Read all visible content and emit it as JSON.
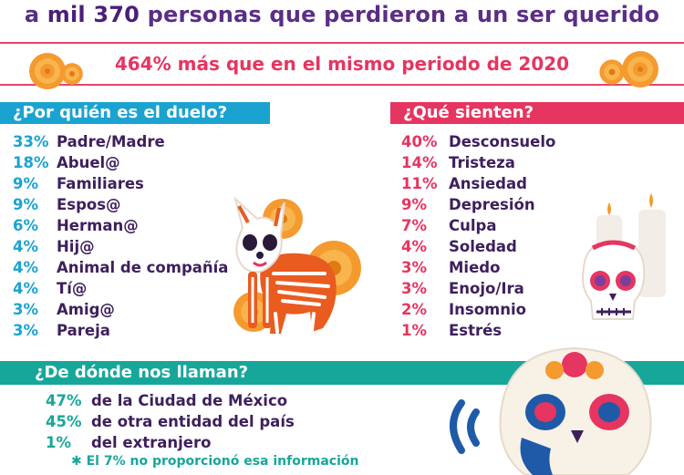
{
  "headline": {
    "pre": "a ",
    "em": "mil 370",
    "post": " personas que perdieron a un ser querido"
  },
  "subhead": "464% más que en el mismo periodo de 2020",
  "duelo": {
    "title": "¿Por quién es el duelo?",
    "items": [
      {
        "pct": "33%",
        "label": "Padre/Madre"
      },
      {
        "pct": "18%",
        "label": "Abuel@"
      },
      {
        "pct": "9%",
        "label": "Familiares"
      },
      {
        "pct": "9%",
        "label": "Espos@"
      },
      {
        "pct": "6%",
        "label": "Herman@"
      },
      {
        "pct": "4%",
        "label": "Hij@"
      },
      {
        "pct": "4%",
        "label": "Animal de compañía"
      },
      {
        "pct": "4%",
        "label": "Tí@"
      },
      {
        "pct": "3%",
        "label": "Amig@"
      },
      {
        "pct": "3%",
        "label": "Pareja"
      }
    ]
  },
  "sienten": {
    "title": "¿Qué sienten?",
    "items": [
      {
        "pct": "40%",
        "label": "Desconsuelo"
      },
      {
        "pct": "14%",
        "label": "Tristeza"
      },
      {
        "pct": "11%",
        "label": "Ansiedad"
      },
      {
        "pct": "9%",
        "label": "Depresión"
      },
      {
        "pct": "7%",
        "label": "Culpa"
      },
      {
        "pct": "4%",
        "label": "Soledad"
      },
      {
        "pct": "3%",
        "label": "Miedo"
      },
      {
        "pct": "3%",
        "label": "Enojo/Ira"
      },
      {
        "pct": "2%",
        "label": "Insomnio"
      },
      {
        "pct": "1%",
        "label": "Estrés"
      }
    ]
  },
  "origen": {
    "title": "¿De dónde nos llaman?",
    "items": [
      {
        "pct": "47%",
        "label": "de la Ciudad de México"
      },
      {
        "pct": "45%",
        "label": "de otra entidad del país"
      },
      {
        "pct": "1%",
        "label": "del extranjero"
      }
    ],
    "note_mark": "✱",
    "note": "El 7% no proporcionó esa información"
  },
  "colors": {
    "purple": "#5a2e86",
    "pink": "#e63560",
    "blue": "#1aa3d1",
    "teal": "#17a79a",
    "marigold": "#f59a2e"
  }
}
